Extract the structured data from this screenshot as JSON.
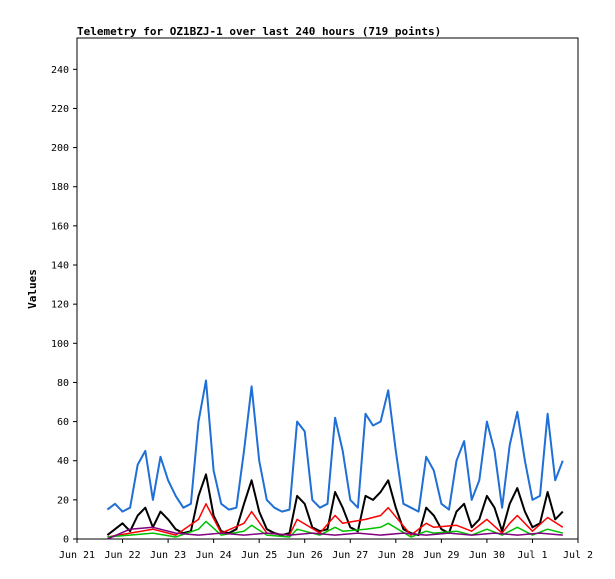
{
  "chart_data": {
    "type": "line",
    "title": "Telemetry for OZ1BZJ-1 over last 240 hours (719 points)",
    "xlabel": "",
    "ylabel": "Values",
    "x_tick_labels": [
      "Jun 21",
      "Jun 22",
      "Jun 23",
      "Jun 24",
      "Jun 25",
      "Jun 26",
      "Jun 27",
      "Jun 28",
      "Jun 29",
      "Jun 30",
      "Jul 1",
      "Jul 2"
    ],
    "xlim": [
      0,
      264
    ],
    "ylim": [
      0,
      256
    ],
    "y_ticks": [
      0,
      20,
      40,
      60,
      80,
      100,
      120,
      140,
      160,
      180,
      200,
      220,
      240
    ],
    "grid": false,
    "legend": "none",
    "series": [
      {
        "color": "#1f6fd6",
        "x": [
          0,
          4,
          8,
          12,
          16,
          20,
          24,
          28,
          32,
          36,
          40,
          44,
          48,
          52,
          56,
          60,
          64,
          68,
          72,
          76,
          80,
          84,
          88,
          92,
          96,
          100,
          104,
          108,
          112,
          116,
          120,
          124,
          128,
          132,
          136,
          140,
          144,
          148,
          152,
          156,
          160,
          164,
          168,
          172,
          176,
          180,
          184,
          188,
          192,
          196,
          200,
          204,
          208,
          212,
          216,
          220,
          224,
          228,
          232,
          236,
          240
        ],
        "values": [
          15,
          18,
          14,
          16,
          38,
          45,
          20,
          42,
          30,
          22,
          16,
          18,
          60,
          81,
          35,
          18,
          15,
          16,
          45,
          78,
          40,
          20,
          16,
          14,
          15,
          60,
          55,
          20,
          16,
          18,
          62,
          45,
          20,
          16,
          64,
          58,
          60,
          76,
          45,
          18,
          16,
          14,
          42,
          35,
          18,
          15,
          40,
          50,
          20,
          30,
          60,
          45,
          16,
          48,
          65,
          40,
          20,
          22,
          64,
          30,
          40
        ]
      },
      {
        "color": "#000000",
        "x": [
          0,
          4,
          8,
          12,
          16,
          20,
          24,
          28,
          32,
          36,
          40,
          44,
          48,
          52,
          56,
          60,
          64,
          68,
          72,
          76,
          80,
          84,
          88,
          92,
          96,
          100,
          104,
          108,
          112,
          116,
          120,
          124,
          128,
          132,
          136,
          140,
          144,
          148,
          152,
          156,
          160,
          164,
          168,
          172,
          176,
          180,
          184,
          188,
          192,
          196,
          200,
          204,
          208,
          212,
          216,
          220,
          224,
          228,
          232,
          236,
          240
        ],
        "values": [
          2,
          5,
          8,
          4,
          12,
          16,
          6,
          14,
          10,
          5,
          3,
          4,
          22,
          33,
          12,
          4,
          3,
          5,
          18,
          30,
          14,
          5,
          3,
          2,
          3,
          22,
          18,
          6,
          4,
          5,
          24,
          16,
          6,
          4,
          22,
          20,
          24,
          30,
          16,
          5,
          3,
          2,
          16,
          12,
          5,
          3,
          14,
          18,
          6,
          10,
          22,
          16,
          4,
          18,
          26,
          14,
          6,
          8,
          24,
          10,
          14
        ]
      },
      {
        "color": "#ff0000",
        "x": [
          0,
          12,
          24,
          36,
          48,
          52,
          60,
          72,
          76,
          84,
          96,
          100,
          112,
          120,
          124,
          136,
          144,
          148,
          160,
          168,
          172,
          184,
          192,
          200,
          208,
          212,
          216,
          224,
          232,
          240
        ],
        "values": [
          1,
          3,
          5,
          2,
          10,
          18,
          3,
          8,
          14,
          3,
          2,
          10,
          3,
          12,
          8,
          10,
          12,
          16,
          2,
          8,
          6,
          7,
          4,
          10,
          3,
          8,
          12,
          4,
          11,
          6
        ]
      },
      {
        "color": "#00c000",
        "x": [
          0,
          12,
          24,
          36,
          48,
          52,
          60,
          72,
          76,
          84,
          96,
          100,
          112,
          120,
          124,
          136,
          144,
          148,
          160,
          168,
          172,
          184,
          192,
          200,
          208,
          212,
          216,
          224,
          232,
          240
        ],
        "values": [
          1,
          2,
          3,
          1,
          5,
          9,
          2,
          4,
          7,
          2,
          1,
          5,
          2,
          6,
          4,
          5,
          6,
          8,
          1,
          4,
          3,
          4,
          2,
          5,
          2,
          4,
          6,
          2,
          5,
          3
        ]
      },
      {
        "color": "#800080",
        "x": [
          0,
          12,
          24,
          36,
          48,
          60,
          72,
          84,
          96,
          108,
          120,
          132,
          144,
          156,
          168,
          180,
          192,
          204,
          216,
          228,
          240
        ],
        "values": [
          0,
          5,
          6,
          3,
          2,
          3,
          2,
          3,
          2,
          3,
          2,
          3,
          2,
          3,
          2,
          3,
          2,
          3,
          2,
          3,
          2
        ]
      }
    ]
  }
}
